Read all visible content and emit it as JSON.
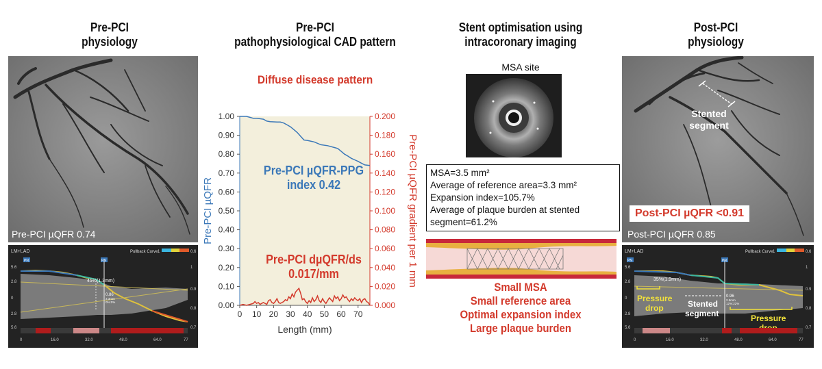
{
  "headers": {
    "col1": [
      "Pre-PCI",
      "physiology"
    ],
    "col2": [
      "Pre-PCI",
      "pathophysiological CAD pattern"
    ],
    "col3": [
      "Stent optimisation using",
      "intracoronary imaging"
    ],
    "col4": [
      "Post-PCI",
      "physiology"
    ]
  },
  "panel1": {
    "angio_caption": "Pre-PCI µQFR 0.74",
    "pullback": {
      "vessel": "LM+LAD",
      "legend": "Pullback Curve",
      "legend_min": "1",
      "legend_max": "0.6",
      "pn_labels": [
        "PN",
        "PN"
      ],
      "left_ticks": [
        "5.6",
        "2.8",
        "0",
        "2.8",
        "5.6"
      ],
      "right_ticks": [
        "1",
        "0.9",
        "0.8",
        "0.7"
      ],
      "stenosis_label": "45%(1.3mm)",
      "point_value": "0.86",
      "point_sub1": "3.3mm",
      "point_sub2": "0%:0%",
      "x_ticks": [
        "0",
        "16.0",
        "32.0",
        "48.0",
        "64.0",
        "77"
      ]
    }
  },
  "panel2": {
    "pattern_title": "Diffuse disease pattern",
    "mid_label": [
      "Pre-PCI µQFR-PPG",
      "index 0.42"
    ],
    "lower_label": [
      "Pre-PCI dµQFR/ds",
      "0.017/mm"
    ]
  },
  "chart_data": {
    "type": "line",
    "xlabel": "Length (mm)",
    "ylabel": "Pre-PCI µQFR",
    "ylabel_right": "Pre-PCI µQFR gradient per 1 mm",
    "xlim": [
      0,
      77
    ],
    "ylim": [
      0,
      1.0
    ],
    "ylim_right": [
      0,
      0.2
    ],
    "x_ticks": [
      "0",
      "10",
      "20",
      "30",
      "40",
      "50",
      "60",
      "70"
    ],
    "y_ticks": [
      "0.00",
      "0.10",
      "0.20",
      "0.30",
      "0.40",
      "0.50",
      "0.60",
      "0.70",
      "0.80",
      "0.90",
      "1.00"
    ],
    "y_right_ticks": [
      "0.000",
      "0.020",
      "0.040",
      "0.060",
      "0.080",
      "0.100",
      "0.120",
      "0.140",
      "0.160",
      "0.180",
      "0.200"
    ],
    "series": [
      {
        "name": "µQFR",
        "axis": "left",
        "color": "#3b78b8",
        "x": [
          0,
          4,
          6,
          8,
          10,
          14,
          16,
          18,
          22,
          24,
          26,
          28,
          30,
          32,
          34,
          36,
          38,
          40,
          44,
          48,
          52,
          56,
          58,
          60,
          62,
          64,
          66,
          68,
          70,
          72,
          74,
          77
        ],
        "y": [
          1.0,
          1.0,
          0.995,
          0.99,
          0.99,
          0.985,
          0.975,
          0.972,
          0.97,
          0.97,
          0.965,
          0.955,
          0.945,
          0.93,
          0.915,
          0.895,
          0.875,
          0.873,
          0.865,
          0.85,
          0.845,
          0.835,
          0.83,
          0.815,
          0.8,
          0.79,
          0.778,
          0.77,
          0.762,
          0.752,
          0.743,
          0.74
        ]
      },
      {
        "name": "dµQFR/ds",
        "axis": "right",
        "color": "#d33a2c",
        "x": [
          0,
          2,
          4,
          6,
          8,
          9,
          10,
          11,
          12,
          13,
          14,
          16,
          17,
          18,
          19,
          20,
          21,
          22,
          23,
          24,
          25,
          26,
          27,
          28,
          29,
          30,
          31,
          32,
          33,
          34,
          35,
          36,
          37,
          38,
          39,
          40,
          41,
          42,
          43,
          44,
          45,
          46,
          47,
          48,
          49,
          50,
          51,
          52,
          53,
          54,
          55,
          56,
          57,
          58,
          59,
          60,
          61,
          62,
          63,
          64,
          65,
          66,
          67,
          68,
          69,
          70,
          71,
          72,
          73,
          74,
          75,
          76,
          77
        ],
        "y": [
          0.0,
          0.001,
          0.0,
          0.001,
          0.002,
          0.004,
          0.002,
          0.003,
          0.001,
          0.002,
          0.003,
          0.001,
          0.005,
          0.006,
          0.003,
          0.002,
          0.004,
          0.007,
          0.003,
          0.002,
          0.003,
          0.004,
          0.006,
          0.005,
          0.009,
          0.007,
          0.012,
          0.009,
          0.014,
          0.016,
          0.018,
          0.013,
          0.006,
          0.007,
          0.004,
          0.002,
          0.005,
          0.003,
          0.008,
          0.004,
          0.006,
          0.01,
          0.005,
          0.003,
          0.007,
          0.004,
          0.002,
          0.005,
          0.008,
          0.006,
          0.004,
          0.01,
          0.007,
          0.009,
          0.005,
          0.007,
          0.011,
          0.008,
          0.009,
          0.006,
          0.004,
          0.007,
          0.005,
          0.008,
          0.006,
          0.005,
          0.007,
          0.003,
          0.006,
          0.007,
          0.004,
          0.003,
          0.0
        ]
      }
    ]
  },
  "panel3": {
    "ivus_label": "MSA site",
    "stats": [
      "MSA=3.5 mm²",
      "Average of reference area=3.3 mm²",
      "Expansion index=105.7%",
      "Average of plaque burden at stented",
      "segment=61.2%"
    ],
    "findings": [
      "Small MSA",
      "Small reference area",
      "Optimal expansion index",
      "Large plaque burden"
    ]
  },
  "panel4": {
    "stented_label": [
      "Stented",
      "segment"
    ],
    "post_qfr_threshold": "Post-PCI µQFR <0.91",
    "angio_caption": "Post-PCI µQFR 0.85",
    "pullback": {
      "vessel": "LM+LAD",
      "legend": "Pullback Curve",
      "legend_min": "1",
      "legend_max": "0.6",
      "pn_labels": [
        "PN",
        "PN"
      ],
      "left_ticks": [
        "5.6",
        "2.8",
        "0",
        "2.8",
        "5.6"
      ],
      "right_ticks": [
        "1",
        "0.9",
        "0.8",
        "0.7"
      ],
      "stenosis_label": "35%(1.9mm)",
      "point_value": "0.96",
      "point_sub1": "2.5mm",
      "point_sub2": "12%:22%",
      "pressure_drop_left": [
        "Pressure",
        "drop"
      ],
      "stented_segment": [
        "Stented",
        "segment"
      ],
      "pressure_drop_right": [
        "Pressure",
        "drop"
      ],
      "x_ticks": [
        "0",
        "16.0",
        "32.0",
        "48.0",
        "64.0",
        "77"
      ]
    }
  }
}
